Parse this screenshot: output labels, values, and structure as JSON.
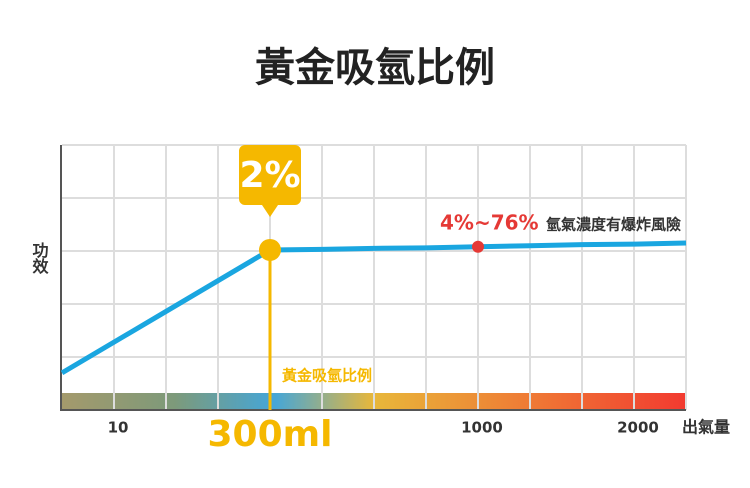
{
  "chart_data": {
    "type": "line",
    "title": "黃金吸氫比例",
    "y_label": "功效",
    "x_label": "出氣量",
    "categories": [
      null,
      "10",
      null,
      null,
      "300ml",
      null,
      null,
      null,
      "1000",
      null,
      null,
      "2000",
      null
    ],
    "series": [
      {
        "color": "#1aa6e0",
        "values": [
          0.7,
          1.28,
          1.86,
          2.44,
          3.02,
          3.03,
          3.05,
          3.06,
          3.08,
          3.1,
          3.12,
          3.13,
          3.15
        ]
      }
    ],
    "ylim": [
      0,
      5
    ],
    "grid": true,
    "annotations": [
      {
        "label": "2%",
        "category": "300ml",
        "color": "#f5b800",
        "note": "黃金吸氫比例"
      },
      {
        "label": "4%~76%",
        "category": "1000",
        "color": "#e53935",
        "note": "氫氣濃度有爆炸風險"
      }
    ]
  }
}
